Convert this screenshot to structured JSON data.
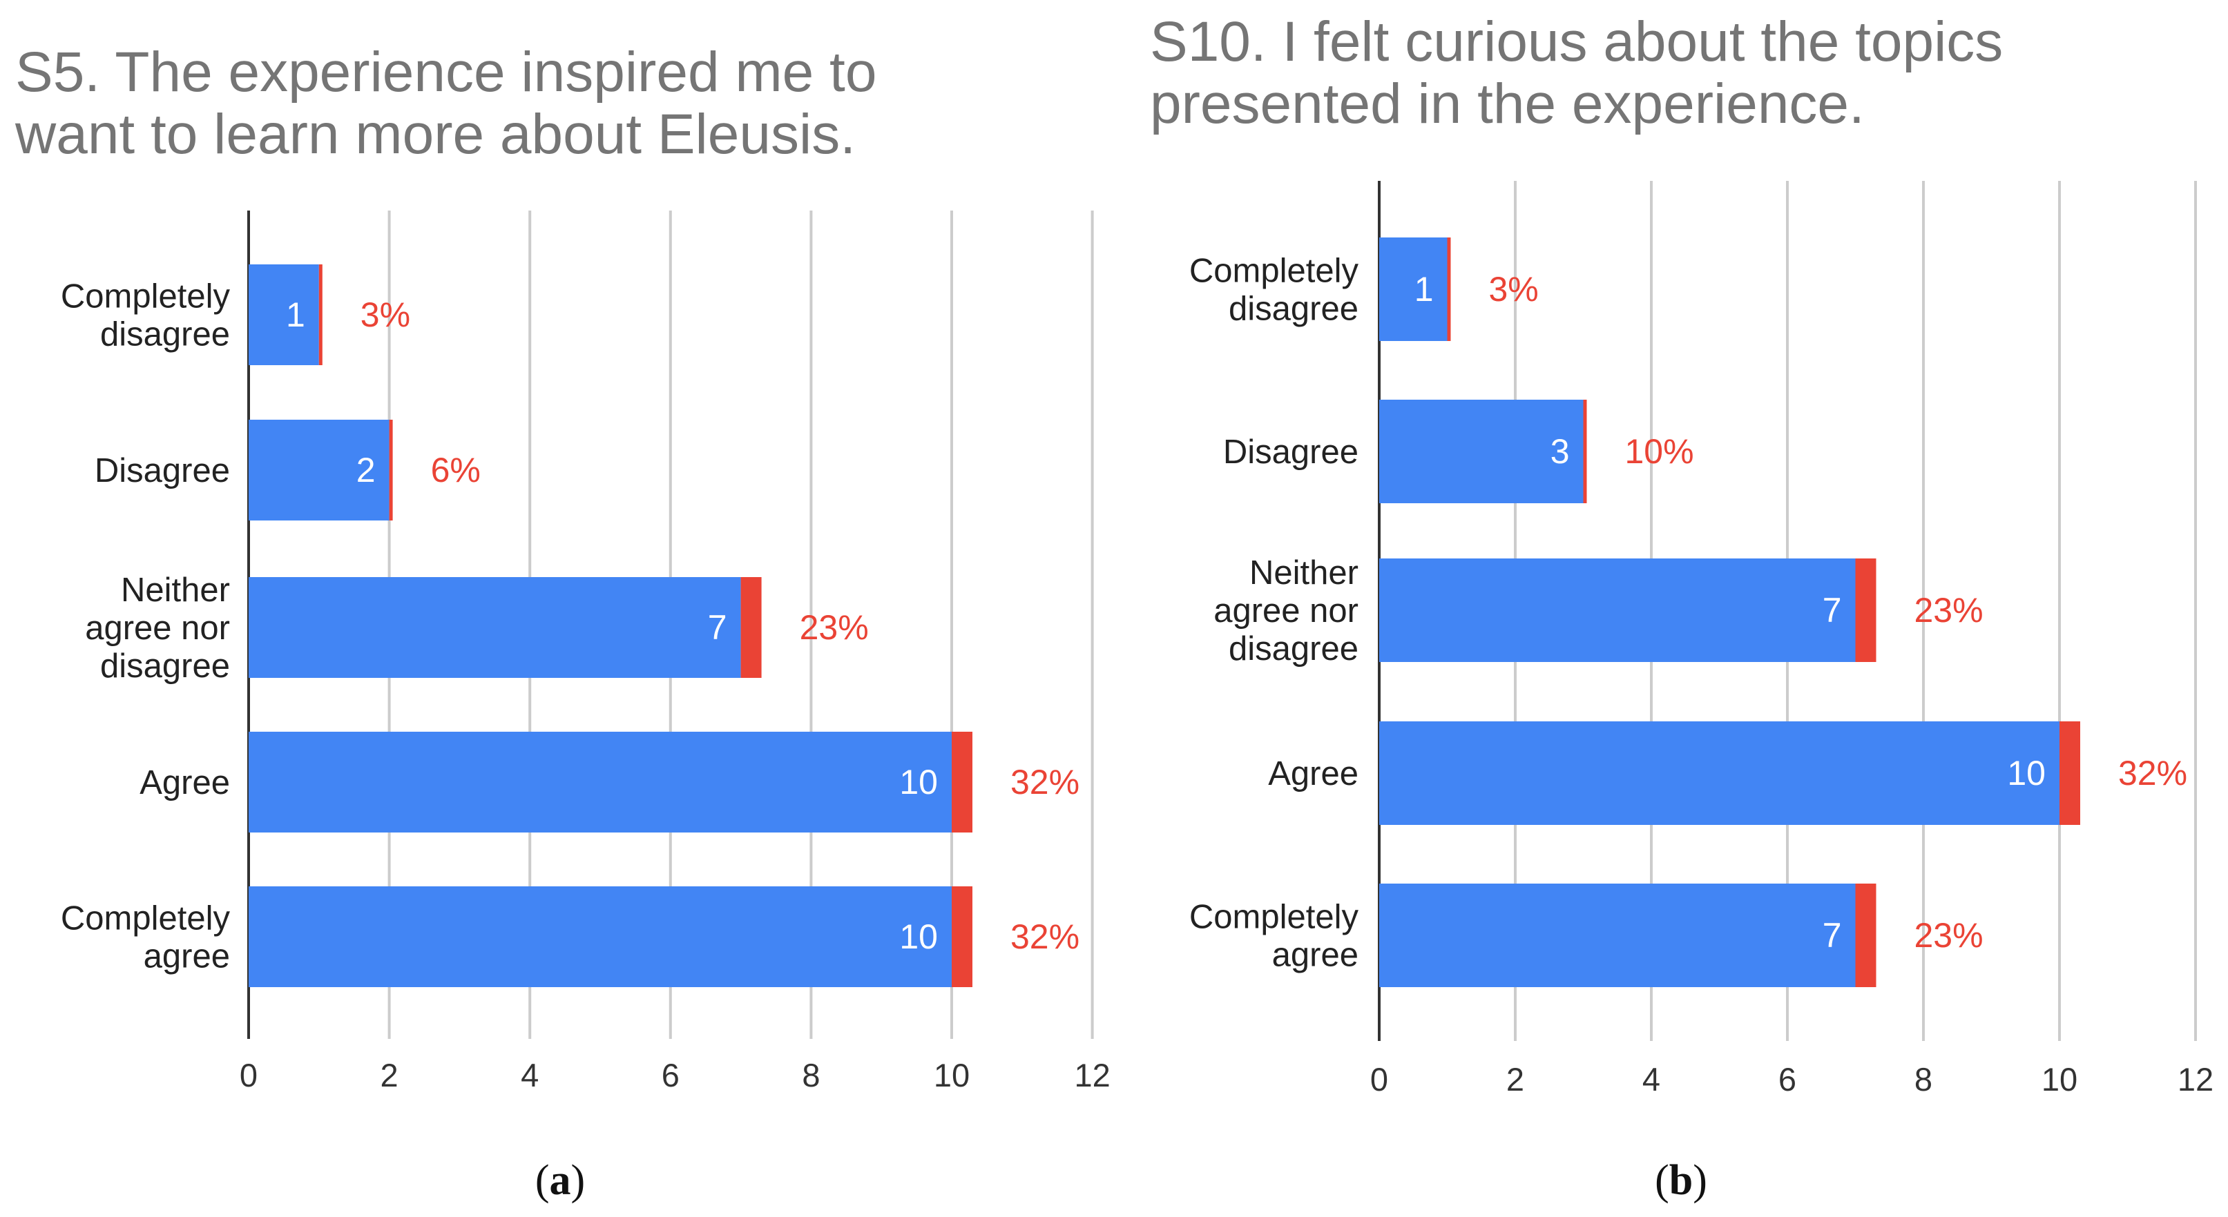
{
  "colors": {
    "bar": "#4285f4",
    "accent": "#ea4335",
    "grid": "#cccccc",
    "axis": "#333333",
    "title": "#757575"
  },
  "chart_data": [
    {
      "type": "bar",
      "orientation": "horizontal",
      "title_lines": [
        "S5. The experience inspired me to",
        "want to learn more about Eleusis."
      ],
      "title": "S5. The experience inspired me to want to learn more about Eleusis.",
      "categories": [
        [
          "Completely",
          "disagree"
        ],
        [
          "Disagree"
        ],
        [
          "Neither",
          "agree nor",
          "disagree"
        ],
        [
          "Agree"
        ],
        [
          "Completely",
          "agree"
        ]
      ],
      "values": [
        1,
        2,
        7,
        10,
        10
      ],
      "value_labels": [
        "1",
        "2",
        "7",
        "10",
        "10"
      ],
      "percent_labels": [
        "3%",
        "6%",
        "23%",
        "32%",
        "32%"
      ],
      "xlim": [
        0,
        12
      ],
      "xticks": [
        "0",
        "2",
        "4",
        "6",
        "8",
        "10",
        "12"
      ],
      "grid": true,
      "caption_open": "(",
      "caption_letter": "a",
      "caption_close": ")"
    },
    {
      "type": "bar",
      "orientation": "horizontal",
      "title_lines": [
        "S10. I felt curious about the topics",
        "presented in the experience."
      ],
      "title": "S10. I felt curious about the topics presented in the experience.",
      "categories": [
        [
          "Completely",
          "disagree"
        ],
        [
          "Disagree"
        ],
        [
          "Neither",
          "agree nor",
          "disagree"
        ],
        [
          "Agree"
        ],
        [
          "Completely",
          "agree"
        ]
      ],
      "values": [
        1,
        3,
        7,
        10,
        7
      ],
      "value_labels": [
        "1",
        "3",
        "7",
        "10",
        "7"
      ],
      "percent_labels": [
        "3%",
        "10%",
        "23%",
        "32%",
        "23%"
      ],
      "xlim": [
        0,
        12
      ],
      "xticks": [
        "0",
        "2",
        "4",
        "6",
        "8",
        "10",
        "12"
      ],
      "grid": true,
      "caption_open": "(",
      "caption_letter": "b",
      "caption_close": ")"
    }
  ]
}
